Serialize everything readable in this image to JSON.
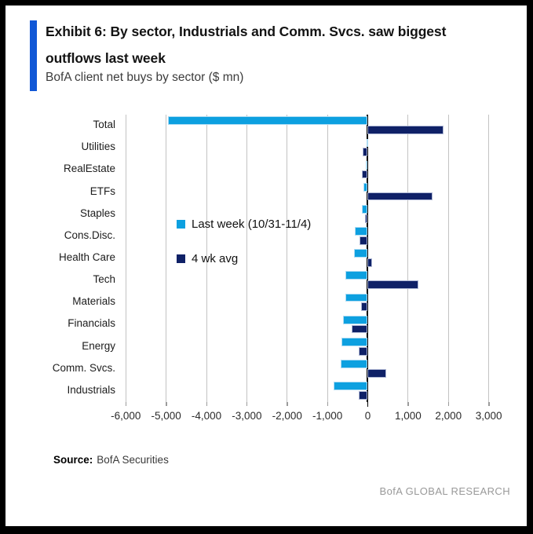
{
  "header": {
    "exhibit_title_line1": "Exhibit 6: By sector, Industrials and Comm. Svcs. saw biggest",
    "exhibit_title_line2": "outflows last week",
    "subtitle": "BofA client net buys by sector ($ mn)"
  },
  "chart_data": {
    "type": "bar",
    "orientation": "horizontal",
    "title": "BofA client net buys by sector ($ mn)",
    "categories": [
      "Total",
      "Utilities",
      "RealEstate",
      "ETFs",
      "Staples",
      "Cons.Disc.",
      "Health Care",
      "Tech",
      "Materials",
      "Financials",
      "Energy",
      "Comm. Svcs.",
      "Industrials"
    ],
    "series": [
      {
        "name": "Last week (10/31-11/4)",
        "color": "#0DA0E0",
        "values": [
          -4950,
          -15,
          -40,
          -100,
          -140,
          -330,
          -350,
          -550,
          -560,
          -610,
          -645,
          -680,
          -840
        ]
      },
      {
        "name": "4 wk avg",
        "color": "#0F2167",
        "values": [
          1870,
          -130,
          -155,
          1600,
          -60,
          -200,
          100,
          1250,
          -170,
          -390,
          -225,
          450,
          -225
        ]
      }
    ],
    "x_ticks": [
      -6000,
      -5000,
      -4000,
      -3000,
      -2000,
      -1000,
      0,
      1000,
      2000,
      3000
    ],
    "x_tick_labels": [
      "-6,000",
      "-5,000",
      "-4,000",
      "-3,000",
      "-2,000",
      "-1,000",
      "0",
      "1,000",
      "2,000",
      "3,000"
    ],
    "xlim": [
      -6200,
      3650
    ],
    "grid": "vertical",
    "legend_position": "inside-middle-left",
    "ylabel": "",
    "xlabel": ""
  },
  "footer": {
    "source_label": "Source:",
    "source_value": "BofA Securities",
    "brand": "BofA GLOBAL RESEARCH"
  },
  "colors": {
    "accent_bar": "#1057D6",
    "last_week_blue": "#0DA0E0",
    "four_wk_avg_navy": "#0F2167",
    "gridline": "#C3C3C3",
    "zero_line": "#000000",
    "brand_text": "#999999"
  }
}
